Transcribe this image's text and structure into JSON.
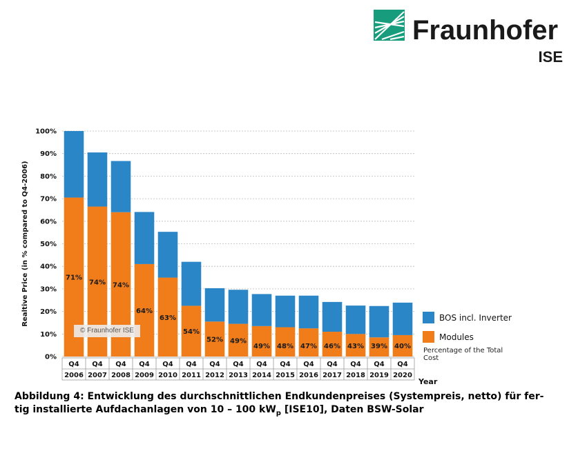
{
  "logo": {
    "name": "Fraunhofer",
    "sub": "ISE",
    "color": "#179c7d"
  },
  "chart_data": {
    "type": "bar",
    "stacked": true,
    "categories_top": [
      "Q4",
      "Q4",
      "Q4",
      "Q4",
      "Q4",
      "Q4",
      "Q4",
      "Q4",
      "Q4",
      "Q4",
      "Q4",
      "Q4",
      "Q4",
      "Q4",
      "Q4"
    ],
    "categories": [
      "2006",
      "2007",
      "2008",
      "2009",
      "2010",
      "2011",
      "2012",
      "2013",
      "2014",
      "2015",
      "2016",
      "2017",
      "2018",
      "2019",
      "2020"
    ],
    "series": [
      {
        "name": "Modules",
        "color": "#f07d1a",
        "values": [
          70.5,
          66.5,
          64,
          41,
          35,
          22.5,
          15.5,
          14.5,
          13.5,
          13,
          12.5,
          11,
          10,
          8.5,
          9.5
        ]
      },
      {
        "name": "BOS incl. Inverter",
        "color": "#2a86c6",
        "values": [
          29.5,
          24,
          22.7,
          23.1,
          20.3,
          19.5,
          14.8,
          15.1,
          14.2,
          14,
          14.5,
          13.2,
          12.6,
          13.9,
          14.4
        ]
      }
    ],
    "module_share_labels": [
      "71%",
      "74%",
      "74%",
      "64%",
      "63%",
      "54%",
      "52%",
      "49%",
      "49%",
      "48%",
      "47%",
      "46%",
      "43%",
      "39%",
      "40%"
    ],
    "ylabel": "Realtive Price (in % compared to Q4-2006)",
    "xlabel": "Year",
    "ylim": [
      0,
      100
    ],
    "yticks": [
      "0%",
      "10%",
      "20%",
      "30%",
      "40%",
      "50%",
      "60%",
      "70%",
      "80%",
      "90%",
      "100%"
    ],
    "grid": true,
    "legend_note": "Percentage of the Total Cost",
    "copyright": "© Fraunhofer ISE"
  },
  "caption": {
    "line1": "Abbildung 4: Entwicklung des durchschnittlichen Endkundenpreises (Systempreis, netto) für fer-",
    "line2_pre": "tig installierte Aufdachanlagen von 10 – 100 kW",
    "line2_sub": "p",
    "line2_post": " [ISE10], Daten BSW-Solar"
  }
}
